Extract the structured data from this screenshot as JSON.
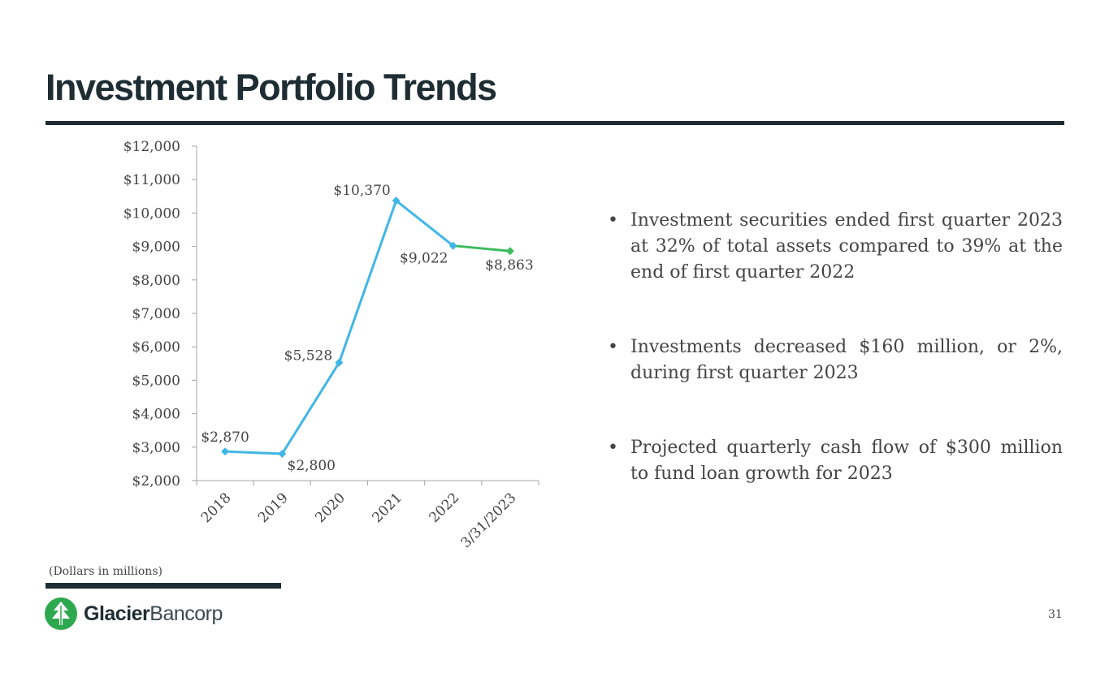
{
  "slide": {
    "title": "Investment Portfolio Trends",
    "note": "(Dollars in millions)",
    "page_number": "31"
  },
  "bullets": [
    "Investment securities ended first quarter 2023 at 32% of total assets compared to 39% at the end of first quarter 2022",
    "Investments decreased $160 million, or 2%, during first quarter 2023",
    "Projected quarterly cash flow of $300 million to fund loan growth for 2023"
  ],
  "logo": {
    "name_bold": "Glacier",
    "name_light": "Bancorp",
    "icon": "glacier-tree-icon"
  },
  "colors": {
    "title": "#1e2d33",
    "line_blue": "#41b6e6",
    "line_green": "#3dbb5d",
    "logo_green": "#2ea84f"
  },
  "chart_data": {
    "type": "line",
    "title": "",
    "xlabel": "",
    "ylabel": "",
    "categories": [
      "2018",
      "2019",
      "2020",
      "2021",
      "2022",
      "3/31/2023"
    ],
    "values": [
      2870,
      2800,
      5528,
      10370,
      9022,
      8863
    ],
    "data_labels": [
      "$2,870",
      "$2,800",
      "$5,528",
      "$10,370",
      "$9,022",
      "$8,863"
    ],
    "ylim": [
      2000,
      12000
    ],
    "yticks": [
      2000,
      3000,
      4000,
      5000,
      6000,
      7000,
      8000,
      9000,
      10000,
      11000,
      12000
    ],
    "ytick_labels": [
      "$2,000",
      "$3,000",
      "$4,000",
      "$5,000",
      "$6,000",
      "$7,000",
      "$8,000",
      "$9,000",
      "$10,000",
      "$11,000",
      "$12,000"
    ],
    "grid": false,
    "legend": "none",
    "segment_colors": [
      "blue",
      "blue",
      "blue",
      "blue",
      "green"
    ]
  }
}
